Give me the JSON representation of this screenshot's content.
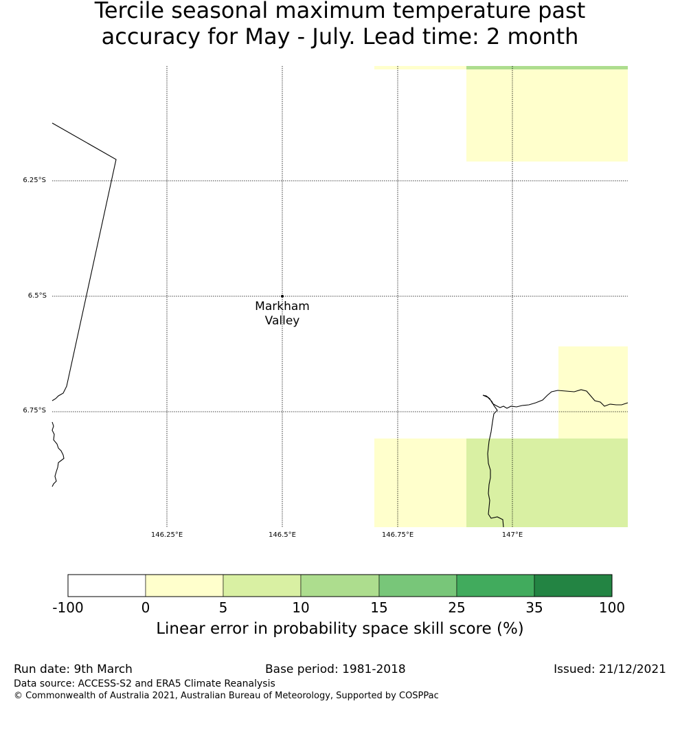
{
  "title": "Tercile seasonal maximum temperature past\naccuracy for May - July. Lead time: 2 month",
  "map": {
    "lat_labels": [
      "6.25°S",
      "6.5°S",
      "6.75°S"
    ],
    "lon_labels": [
      "146.25°E",
      "146.5°E",
      "146.75°E",
      "147°E"
    ],
    "location": {
      "name": "Markham\nValley",
      "lon": 146.5,
      "lat": -6.5
    },
    "extent": {
      "lon_min": 146.0,
      "lon_max": 147.25,
      "lat_max": -6.0,
      "lat_min": -7.0
    },
    "cells": [
      {
        "lon0": 146.7,
        "lon1": 146.9,
        "lat0": -6.0,
        "lat1": -6.01,
        "category": "0 to 5"
      },
      {
        "lon0": 146.9,
        "lon1": 147.25,
        "lat0": -6.0,
        "lat1": -6.01,
        "category": "10 to 15"
      },
      {
        "lon0": 146.9,
        "lon1": 147.25,
        "lat0": -6.01,
        "lat1": -6.2,
        "category": "0 to 5"
      },
      {
        "lon0": 147.1,
        "lon1": 147.25,
        "lat0": -6.6,
        "lat1": -6.8,
        "category": "0 to 5"
      },
      {
        "lon0": 146.7,
        "lon1": 146.9,
        "lat0": -6.8,
        "lat1": -7.0,
        "category": "0 to 5"
      },
      {
        "lon0": 146.9,
        "lon1": 147.25,
        "lat0": -6.8,
        "lat1": -7.0,
        "category": "5 to 10"
      }
    ]
  },
  "colorbar": {
    "ticks": [
      "-100",
      "0",
      "5",
      "10",
      "15",
      "25",
      "35",
      "100"
    ],
    "colors": [
      "#ffffff",
      "#ffffcc",
      "#d9f0a3",
      "#addd8e",
      "#78c679",
      "#41ab5d",
      "#238443"
    ],
    "label": "Linear error in probability space skill score (%)"
  },
  "footer": {
    "run_date": "Run date: 9th March",
    "base_period": "Base period: 1981-2018",
    "issued": "Issued: 21/12/2021",
    "data_source": "Data source: ACCESS-S2 and ERA5 Climate Reanalysis",
    "copyright": "© Commonwealth of Australia 2021, Australian Bureau of Meteorology, Supported by COSPPac"
  }
}
